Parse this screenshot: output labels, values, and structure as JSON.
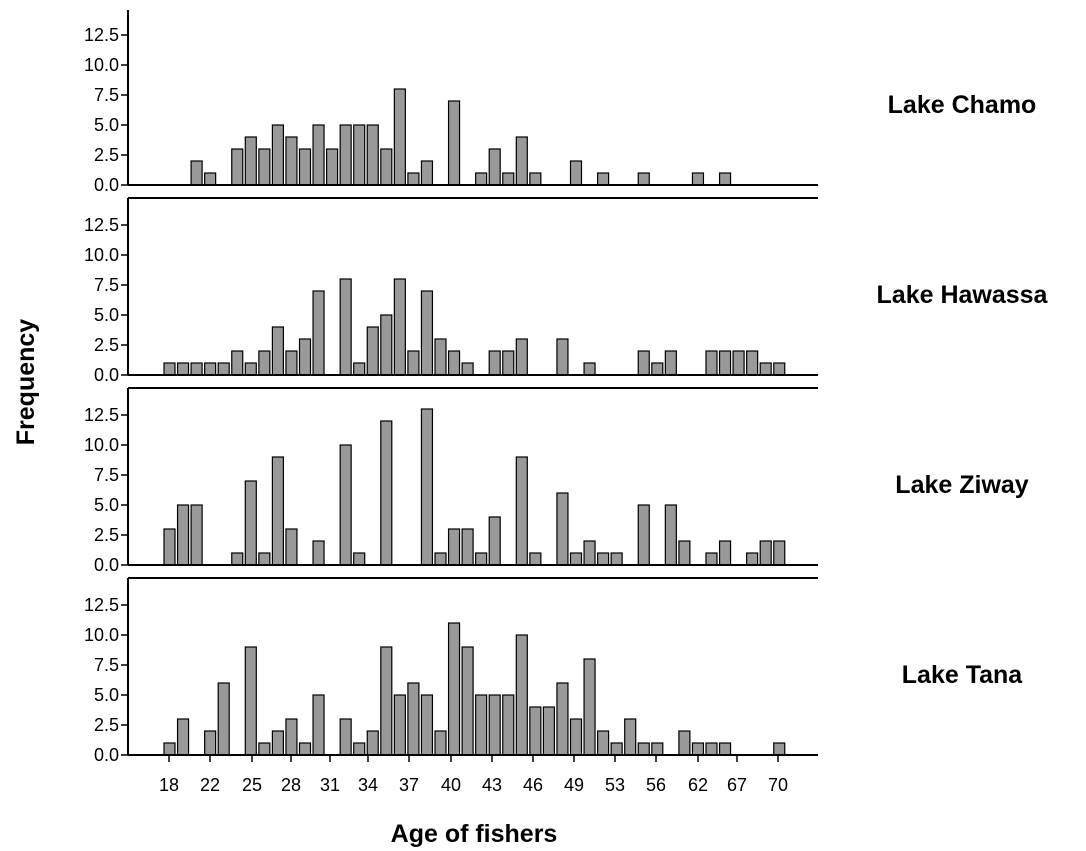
{
  "chart_data": {
    "type": "bar",
    "xlabel": "Age of fishers",
    "ylabel": "Frequency",
    "ylim": [
      0,
      14
    ],
    "y_ticks": [
      "0.0",
      "2.5",
      "5.0",
      "7.5",
      "10.0",
      "12.5"
    ],
    "x_tick_labels": [
      "18",
      "22",
      "25",
      "28",
      "31",
      "34",
      "37",
      "40",
      "43",
      "46",
      "49",
      "53",
      "56",
      "62",
      "67",
      "70"
    ],
    "bar_color": "#999999",
    "grid": false,
    "panels": [
      {
        "name": "Lake Chamo",
        "values": [
          0,
          0,
          2,
          1,
          0,
          3,
          4,
          3,
          5,
          4,
          3,
          5,
          3,
          5,
          5,
          5,
          3,
          8,
          1,
          2,
          0,
          7,
          0,
          1,
          3,
          1,
          4,
          1,
          0,
          0,
          2,
          0,
          1,
          0,
          0,
          1,
          0,
          0,
          0,
          1,
          0,
          1,
          0,
          0,
          0,
          0
        ]
      },
      {
        "name": "Lake Hawassa",
        "values": [
          1,
          1,
          1,
          1,
          1,
          2,
          1,
          2,
          4,
          2,
          3,
          7,
          0,
          8,
          1,
          4,
          5,
          8,
          2,
          7,
          3,
          2,
          1,
          0,
          2,
          2,
          3,
          0,
          0,
          3,
          0,
          1,
          0,
          0,
          0,
          2,
          1,
          2,
          0,
          0,
          2,
          2,
          2,
          2,
          1,
          1
        ]
      },
      {
        "name": "Lake Ziway",
        "values": [
          3,
          5,
          5,
          0,
          0,
          1,
          7,
          1,
          9,
          3,
          0,
          2,
          0,
          10,
          1,
          0,
          12,
          0,
          0,
          13,
          1,
          3,
          3,
          1,
          4,
          0,
          9,
          1,
          0,
          6,
          1,
          2,
          1,
          1,
          0,
          5,
          0,
          5,
          2,
          0,
          1,
          2,
          0,
          1,
          2,
          2
        ]
      },
      {
        "name": "Lake Tana",
        "values": [
          1,
          3,
          0,
          2,
          6,
          0,
          9,
          1,
          2,
          3,
          1,
          5,
          0,
          3,
          1,
          2,
          9,
          5,
          6,
          5,
          2,
          11,
          9,
          5,
          5,
          5,
          10,
          4,
          4,
          6,
          3,
          8,
          2,
          1,
          3,
          1,
          1,
          0,
          2,
          1,
          1,
          1,
          0,
          0,
          0,
          1
        ]
      }
    ]
  }
}
